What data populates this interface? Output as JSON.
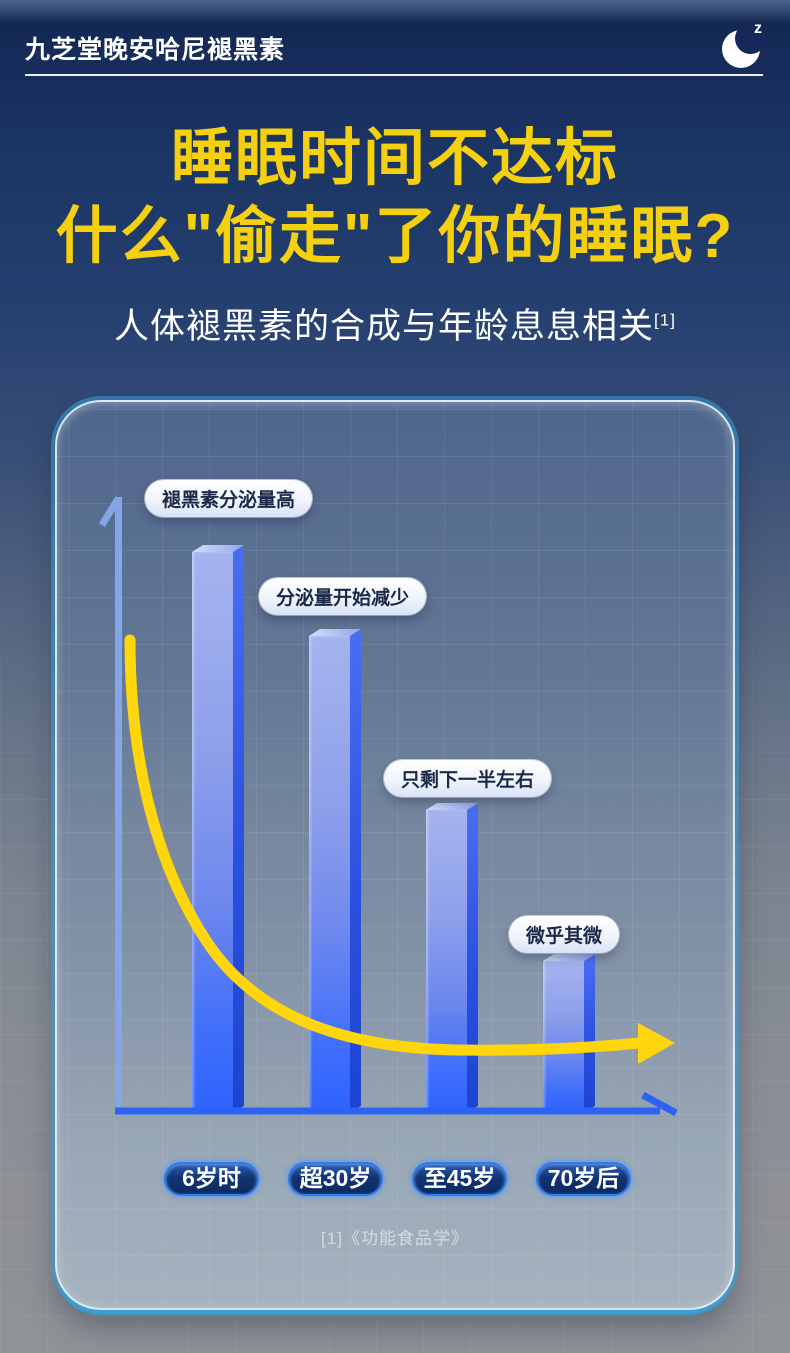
{
  "brand_bar": {
    "title": "九芝堂晚安哈尼褪黑素"
  },
  "moon_icon": {
    "zzz_text": "z"
  },
  "headline": {
    "line1": "睡眠时间不达标",
    "line2": "什么\"偷走\"了你的睡眠?"
  },
  "subheadline": {
    "text": "人体褪黑素的合成与年龄息息相关",
    "reference_mark": "[1]"
  },
  "colors": {
    "headline_yellow": "#F5D00E",
    "curve_yellow": "#FFD60B",
    "bar_front_top": "#A5B4EF",
    "bar_front_bottom": "#2D63FF",
    "bar_side_blue": "#2A50E0",
    "x_axis_blue": "#2D63F2",
    "y_axis_light_blue": "#84A6E6",
    "card_edge_cyan": "#2FA9E2",
    "bg_top_navy": "#122550",
    "bg_bottom_gray": "#8F9297"
  },
  "chart_data": {
    "type": "bar",
    "title": "人体褪黑素的合成与年龄息息相关",
    "categories": [
      "6岁时",
      "超30岁",
      "至45岁",
      "70岁后"
    ],
    "values": [
      100,
      85,
      54,
      27
    ],
    "value_note": "no numeric axis shown; values are relative bar heights with 6岁时 = 100",
    "annotations": [
      "褪黑素分泌量高",
      "分泌量开始减少",
      "只剩下一半左右",
      "微乎其微"
    ],
    "trend_line": "yellow exponential-decay curve with right-pointing arrow",
    "xlabel": "",
    "ylabel": "",
    "legend": "none",
    "grid": "faint square grid on glass card",
    "footnote": "[1]《功能食品学》"
  }
}
